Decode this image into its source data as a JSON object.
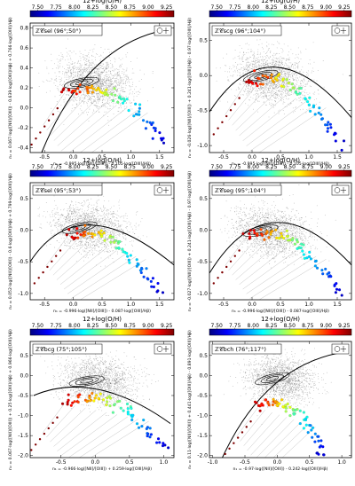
{
  "colorbar": {
    "title": "12+log(O/H)",
    "ticks": [
      "7.50",
      "7.75",
      "8.00",
      "8.25",
      "8.50",
      "8.75",
      "9.00",
      "9.25"
    ],
    "range": [
      7.4,
      9.35
    ],
    "colormap": [
      "#00007f",
      "#0000ff",
      "#007fff",
      "#00ffff",
      "#7fff7f",
      "#ffff00",
      "#ff7f00",
      "#ff0000",
      "#7f0000"
    ]
  },
  "chart_data": [
    {
      "type": "scatter",
      "label": "ℤ𝒞sel (96°;50°)",
      "xlabel": "n₁ = -0.995·log([NII]/[OIII]) - 0.105·log([OIII]/Hβ)",
      "ylabel": "n₂ = 0.067·log([NII]/[OIII]) - 0.639·log([OIII]/Hβ) + 0.766·log([OIII]/Hβ)",
      "xlim": [
        -0.75,
        1.75
      ],
      "ylim": [
        -0.45,
        0.85
      ],
      "xticks": [
        "-0.5",
        "0.0",
        "0.5",
        "1.0",
        "1.5"
      ],
      "yticks": [
        "-0.4",
        "-0.2",
        "0.0",
        "0.2",
        "0.4",
        "0.6",
        "0.8"
      ],
      "curve": {
        "type": "rising",
        "x0": -0.55,
        "y0": -0.45,
        "x1": 1.7,
        "y1": 0.79
      },
      "cloud_center": [
        0.35,
        0.2
      ],
      "locus_start": [
        -0.15,
        0.15
      ],
      "locus_end": [
        1.55,
        -0.35
      ],
      "contours": [
        "inner",
        "middle",
        "outer"
      ]
    },
    {
      "type": "scatter",
      "label": "ℤ𝒞scg (96°;104°)",
      "xlabel": "n₁ = -0.995·log([NII]/[OIII]) - 0.105·log([OIII]/Hβ)",
      "ylabel": "n₂ = -0.026·log([NII]/[OIII]) + 0.241·log([OIII]/Hβ) - 0.97·log([OIII]/Hβ)",
      "xlim": [
        -0.75,
        1.75
      ],
      "ylim": [
        -1.1,
        0.75
      ],
      "xticks": [
        "-0.5",
        "0.0",
        "0.5",
        "1.0",
        "1.5"
      ],
      "yticks": [
        "-1.0",
        "-0.5",
        "0.0",
        "0.5"
      ],
      "curve": {
        "type": "arch",
        "x0": -0.75,
        "y0": -0.52,
        "xp": 0.4,
        "yp": 0.12,
        "x1": 1.75,
        "y1": -0.6
      },
      "cloud_center": [
        0.35,
        -0.1
      ],
      "locus_start": [
        -0.1,
        -0.1
      ],
      "locus_end": [
        1.55,
        -1.0
      ],
      "contours": [
        "inner",
        "middle",
        "outer"
      ]
    },
    {
      "type": "scatter",
      "label": "ℤ𝒞sel (95°;53°)",
      "xlabel": "n₁ = -0.996·log([NII]/[OIII]) - 0.087·log([OIII]/Hβ)",
      "ylabel": "n₂ = 0.052·log([NII]/[OIII]) - 0.6·log([OIII]/Hβ) + 0.799·log([OIII]/Hβ)",
      "xlim": [
        -0.75,
        1.75
      ],
      "ylim": [
        -1.1,
        0.75
      ],
      "xticks": [
        "-0.5",
        "0.0",
        "0.5",
        "1.0",
        "1.5"
      ],
      "yticks": [
        "-1.0",
        "-0.5",
        "0.0",
        "0.5"
      ],
      "curve": {
        "type": "arch",
        "x0": -0.75,
        "y0": -0.5,
        "xp": 0.3,
        "yp": 0.08,
        "x1": 1.75,
        "y1": -0.55
      },
      "cloud_center": [
        0.3,
        -0.05
      ],
      "locus_start": [
        -0.1,
        -0.1
      ],
      "locus_end": [
        1.5,
        -1.0
      ],
      "contours": [
        "inner",
        "middle",
        "outer"
      ]
    },
    {
      "type": "scatter",
      "label": "ℤ𝒞seg (95°;104°)",
      "xlabel": "n₁ = -0.996·log([NII]/[OIII]) - 0.087·log([OIII]/Hβ)",
      "ylabel": "n₂ = -0.027·log([NII]/[OIII]) + 0.241·log([OIII]/Hβ) - 0.97·log([OIII]/Hβ)",
      "xlim": [
        -0.75,
        1.75
      ],
      "ylim": [
        -1.1,
        0.75
      ],
      "xticks": [
        "-0.5",
        "0.0",
        "0.5",
        "1.0",
        "1.5"
      ],
      "yticks": [
        "-1.0",
        "-0.5",
        "0.0",
        "0.5"
      ],
      "curve": {
        "type": "arch",
        "x0": -0.75,
        "y0": -0.68,
        "xp": 0.4,
        "yp": 0.12,
        "x1": 1.75,
        "y1": -0.55
      },
      "cloud_center": [
        0.35,
        -0.1
      ],
      "locus_start": [
        -0.1,
        -0.1
      ],
      "locus_end": [
        1.55,
        -1.0
      ],
      "contours": [
        "inner",
        "middle",
        "outer"
      ]
    },
    {
      "type": "scatter",
      "label": "ℤ𝒞bcg (75°;105°)",
      "xlabel": "n₁ = -0.966·log([NII]/[OIII]) + 0.259·log([OIII]/Hβ)",
      "ylabel": "n₂ = 0.067·log([NII]/[OIII]) + 0.25·log([OIII]/Hβ) + 0.966·log([OIII]/Hβ)",
      "xlim": [
        -0.95,
        1.15
      ],
      "ylim": [
        -2.05,
        0.85
      ],
      "xticks": [
        "-0.5",
        "0.0",
        "0.5",
        "1.0"
      ],
      "yticks": [
        "-2.0",
        "-1.5",
        "-1.0",
        "-0.5",
        "0.0",
        "0.5"
      ],
      "curve": {
        "type": "arch",
        "x0": -0.9,
        "y0": -0.5,
        "xp": 0.05,
        "yp": -0.35,
        "x1": 1.1,
        "y1": -1.2
      },
      "cloud_center": [
        0.05,
        -0.25
      ],
      "locus_start": [
        -0.45,
        -0.7
      ],
      "locus_end": [
        1.0,
        -1.8
      ],
      "contours": [
        "inner",
        "middle",
        "outer"
      ]
    },
    {
      "type": "scatter",
      "label": "ℤ𝒞bch (76°;117°)",
      "xlabel": "n₁ = -0.97·log([NII]/[OIII]) - 0.242·log([OIII]/Hβ)",
      "ylabel": "n₂ = 0.11·log([NII]/[OIII]) + 0.441·log([OIII]/Hβ) - 0.891·log([OIII]/Hβ)",
      "xlim": [
        -1.05,
        1.15
      ],
      "ylim": [
        -2.05,
        0.85
      ],
      "xticks": [
        "-1.0",
        "-0.5",
        "0.0",
        "0.5",
        "1.0"
      ],
      "yticks": [
        "-2.0",
        "-1.5",
        "-1.0",
        "-0.5",
        "0.0",
        "0.5"
      ],
      "curve": {
        "type": "rising",
        "x0": -0.85,
        "y0": -2.05,
        "x1": 1.1,
        "y1": 0.6
      },
      "cloud_center": [
        0.05,
        -0.2
      ],
      "locus_start": [
        -0.3,
        -0.8
      ],
      "locus_end": [
        0.75,
        -2.0
      ],
      "contours": [
        "inner",
        "middle",
        "outer"
      ]
    }
  ]
}
